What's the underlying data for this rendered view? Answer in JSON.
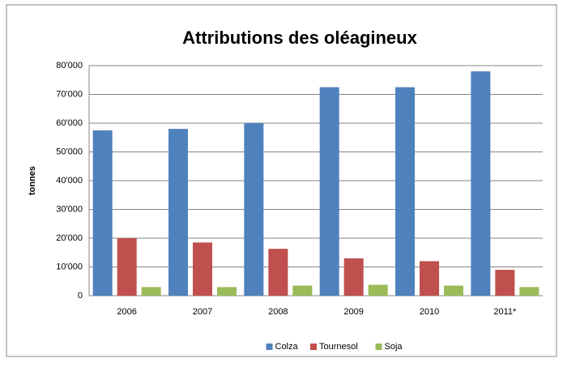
{
  "chart_data": {
    "type": "bar",
    "title": "Attributions des oléagineux",
    "y_label": "tonnes",
    "categories": [
      "2006",
      "2007",
      "2008",
      "2009",
      "2010",
      "2011*"
    ],
    "series": [
      {
        "name": "Colza",
        "color": "#4f81bd",
        "values": [
          57500,
          58000,
          60000,
          72500,
          72500,
          78000
        ]
      },
      {
        "name": "Tournesol",
        "color": "#c0504d",
        "values": [
          20000,
          18500,
          16300,
          13000,
          12000,
          9000
        ]
      },
      {
        "name": "Soja",
        "color": "#9bbb59",
        "values": [
          3000,
          3000,
          3500,
          3800,
          3500,
          3000
        ]
      }
    ],
    "ylim": [
      0,
      80000
    ],
    "yticks": [
      0,
      {
        "value": 10000,
        "label": "10'000"
      },
      {
        "value": 20000,
        "label": "20'000"
      },
      {
        "value": 30000,
        "label": "30'000"
      },
      {
        "value": 40000,
        "label": "40'000"
      },
      {
        "value": 50000,
        "label": "50'000"
      },
      {
        "value": 60000,
        "label": "60'000"
      },
      {
        "value": 70000,
        "label": "70'000"
      },
      {
        "value": 80000,
        "label": "80'000"
      }
    ],
    "grid": true,
    "legend": "bottom"
  }
}
